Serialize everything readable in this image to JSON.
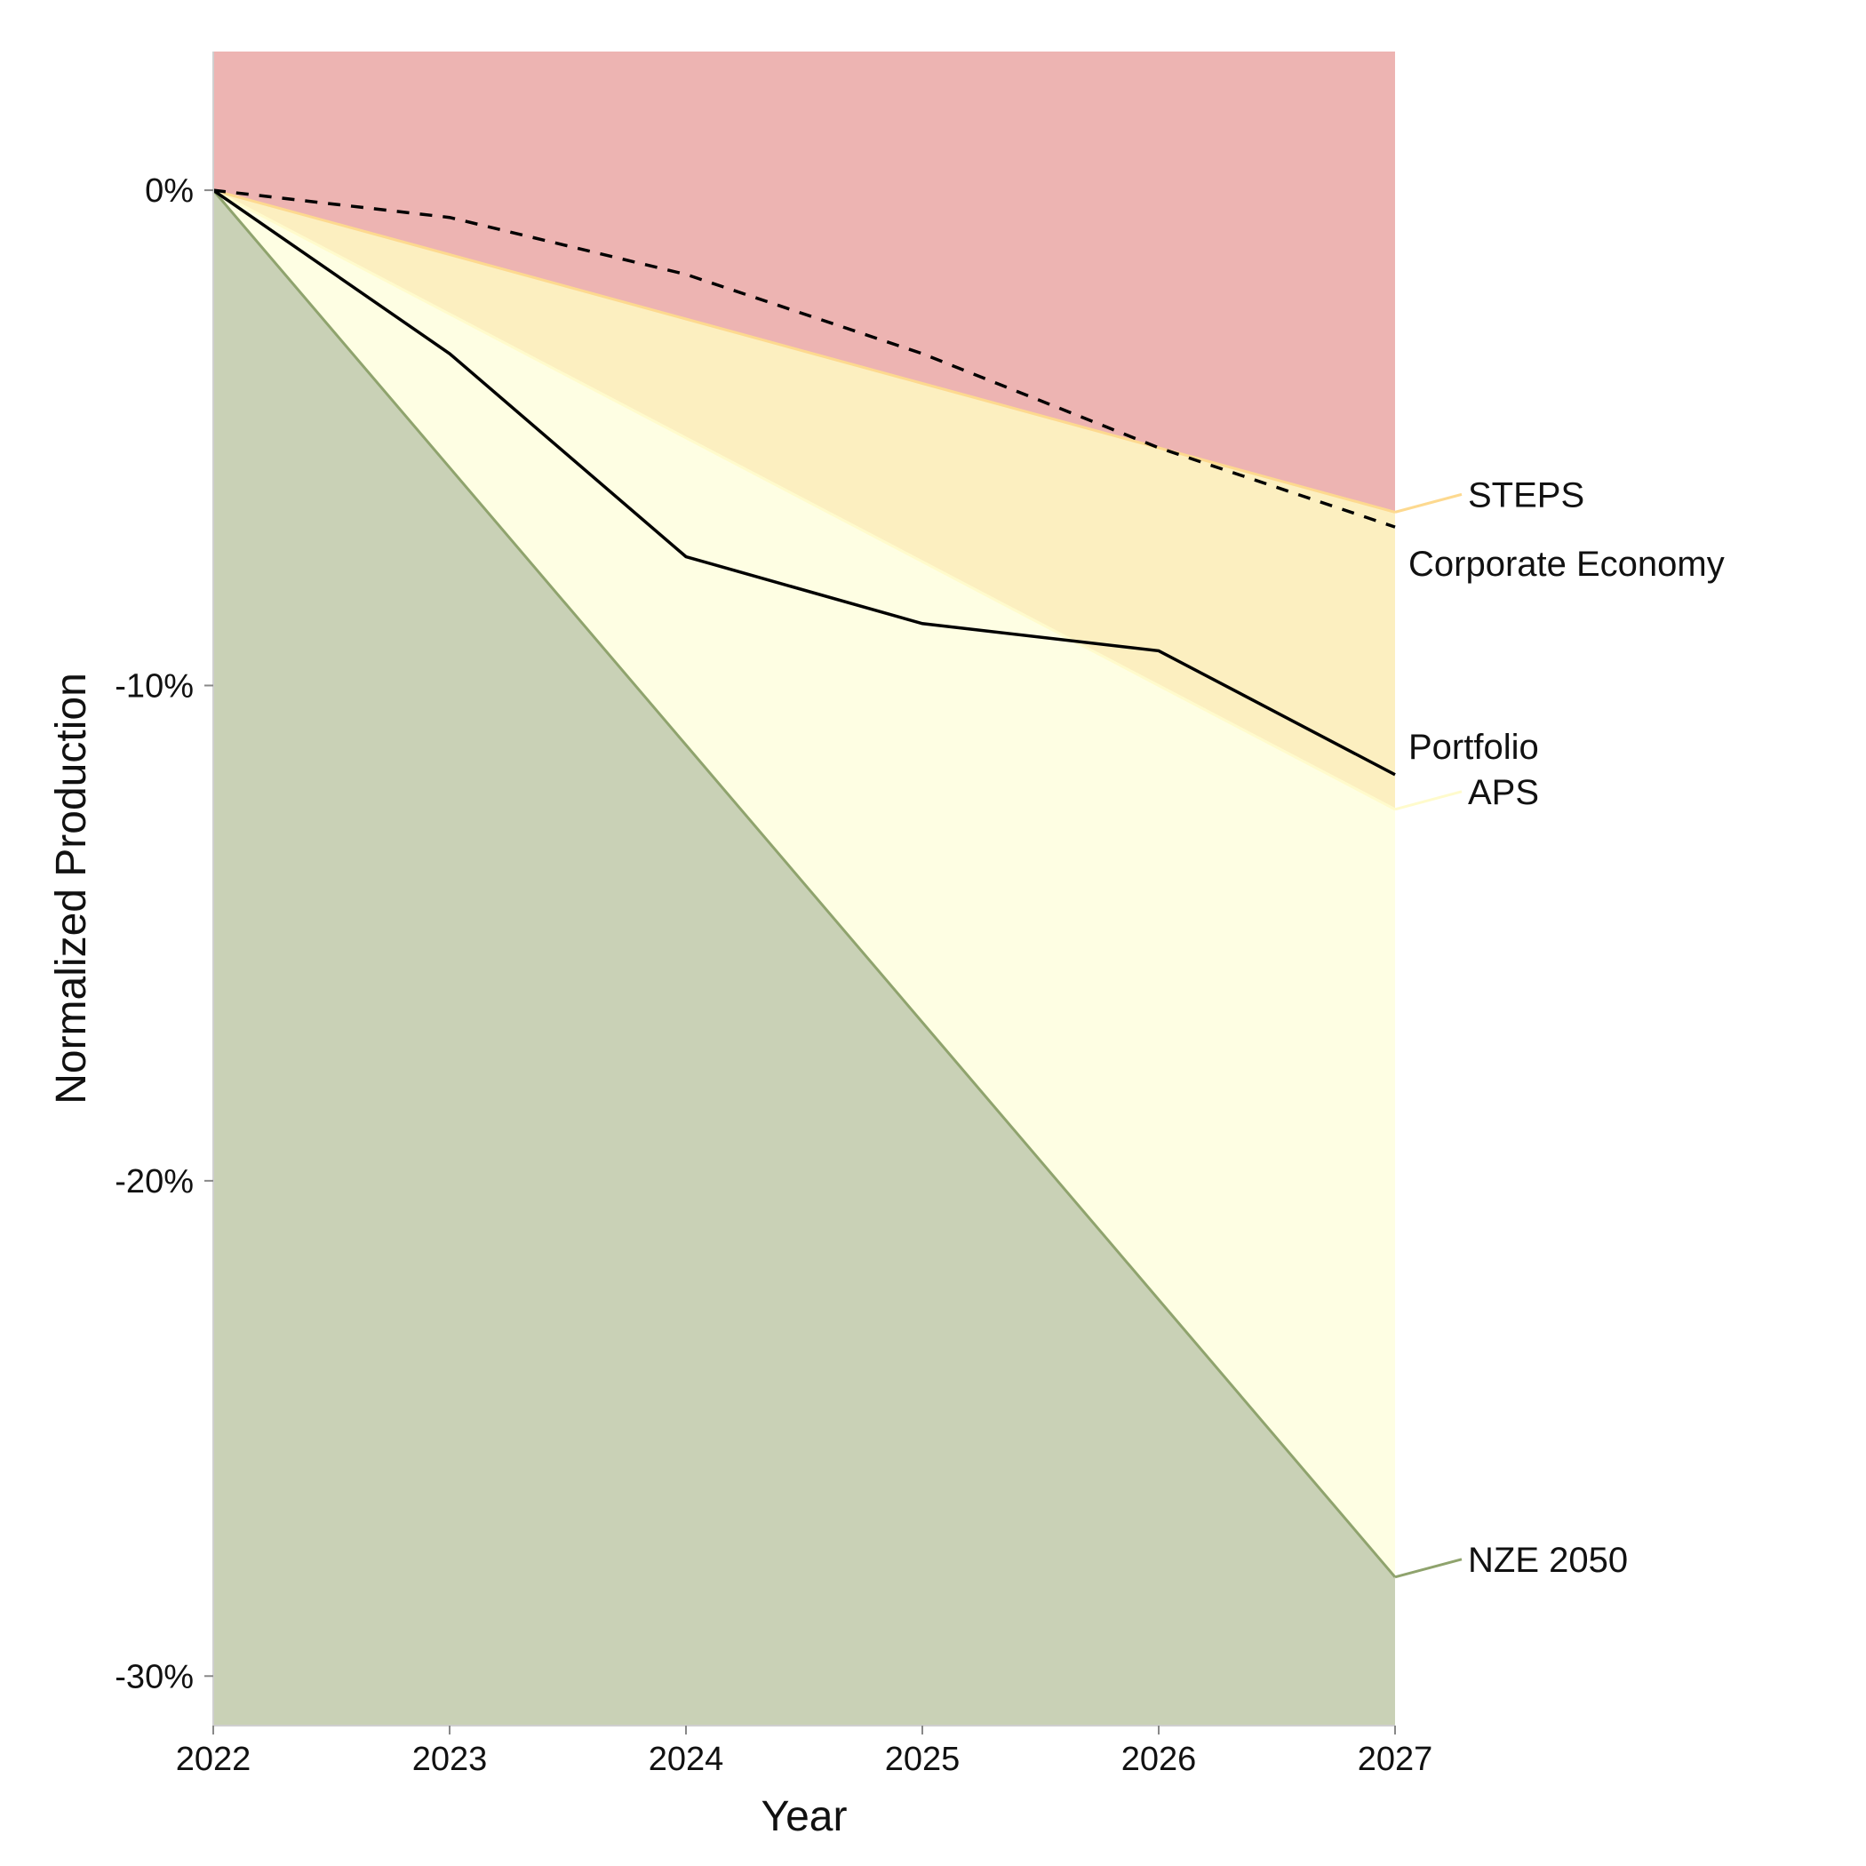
{
  "chart_data": {
    "type": "area",
    "title": "",
    "xlabel": "Year",
    "ylabel": "Normalized Production",
    "x": [
      2022,
      2023,
      2024,
      2025,
      2026,
      2027
    ],
    "x_tick_labels": [
      "2022",
      "2023",
      "2024",
      "2025",
      "2026",
      "2027"
    ],
    "y_ticks": [
      0,
      -10,
      -20,
      -30
    ],
    "y_tick_labels": [
      "0%",
      "-10%",
      "-20%",
      "-30%"
    ],
    "xlim": [
      2022,
      2027
    ],
    "ylim": [
      -31,
      2.8
    ],
    "grid": false,
    "legend": "labels at right end of series",
    "scenarios": [
      {
        "name": "STEPS",
        "values": [
          0,
          -1.3,
          -2.6,
          -3.9,
          -5.2,
          -6.5
        ],
        "color": "#fdd98f",
        "fill": "#fcefc0"
      },
      {
        "name": "APS",
        "values": [
          0,
          -2.5,
          -5.0,
          -7.5,
          -10.0,
          -12.5
        ],
        "color": "#fffbcc",
        "fill": "#fefee3"
      },
      {
        "name": "NZE 2050",
        "values": [
          0,
          -5.6,
          -11.2,
          -16.8,
          -22.4,
          -28.0
        ],
        "color": "#8fa36d",
        "fill": "#c9d1b6"
      }
    ],
    "region_above_steps_fill": "#edb4b2",
    "series": [
      {
        "name": "Portfolio",
        "values": [
          0,
          -3.3,
          -7.4,
          -8.75,
          -9.3,
          -11.8
        ],
        "style": "solid",
        "color": "#000000"
      },
      {
        "name": "Corporate Economy",
        "values": [
          0,
          -0.55,
          -1.7,
          -3.3,
          -5.2,
          -6.8
        ],
        "style": "dashed",
        "color": "#000000"
      }
    ]
  }
}
